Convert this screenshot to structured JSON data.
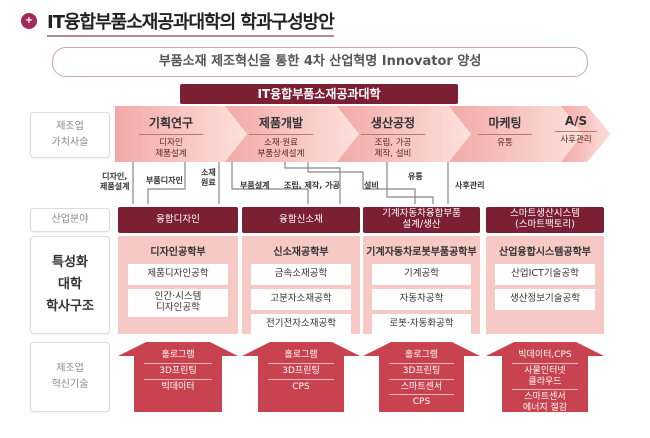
{
  "title": "IT융합부품소재공과대학의 학과구성방안",
  "banner": "부품소재 제조혁신을 통한 4차 산업혁명 Innovator 양성",
  "college": "IT융합부품소재공과대학",
  "row_labels": {
    "value_chain": "제조업\n가치사슬",
    "industry": "산업분야",
    "structure": "특성화\n대학\n학사구조",
    "innovation": "제조업\n혁신기술"
  },
  "value_chain": [
    {
      "title": "기획연구",
      "sub": "디자인\n제품설계"
    },
    {
      "title": "제품개발",
      "sub": "소재·원료\n부품상세설계"
    },
    {
      "title": "생산공정",
      "sub": "조립, 가공\n제작, 설비"
    },
    {
      "title": "마케팅",
      "sub": "유통"
    },
    {
      "title": "A/S",
      "sub": "사후관리"
    }
  ],
  "connectors": [
    "디자인,\n제품설계",
    "부품디자인",
    "소재\n원료",
    "부품설계",
    "조립, 제작, 가공",
    "설비",
    "유통",
    "사후관리"
  ],
  "columns": [
    {
      "industry": "융합디자인",
      "school": "디자인공학부",
      "majors": [
        "제품디자인공학",
        "인간·시스템\n디자인공학"
      ],
      "tech": [
        "홀로그램",
        "3D프린팅",
        "빅데이터"
      ]
    },
    {
      "industry": "융합신소재",
      "school": "신소재공학부",
      "majors": [
        "금속소재공학",
        "고분자소재공학",
        "전기전자소재공학"
      ],
      "tech": [
        "홀로그램",
        "3D프린팅",
        "CPS"
      ]
    },
    {
      "industry": "기계자동차융합부품\n설계/생산",
      "school": "기계자동차로봇부품공학부",
      "majors": [
        "기계공학",
        "자동차공학",
        "로봇·자동화공학"
      ],
      "tech": [
        "홀로그램",
        "3D프린팅",
        "스마트센서",
        "CPS"
      ]
    },
    {
      "industry": "스마트생산시스템\n(스마트팩토리)",
      "school": "산업융합시스템공학부",
      "majors": [
        "산업ICT기술공학",
        "생산정보기술공학"
      ],
      "tech": [
        "빅데이터,CPS",
        "사물인터넷\n클라우드",
        "스마트센서\n에너지 절감"
      ]
    }
  ],
  "colors": {
    "maroon": "#7b1f33",
    "pink": "#f6c9c4",
    "arrow": "#c8434f"
  }
}
